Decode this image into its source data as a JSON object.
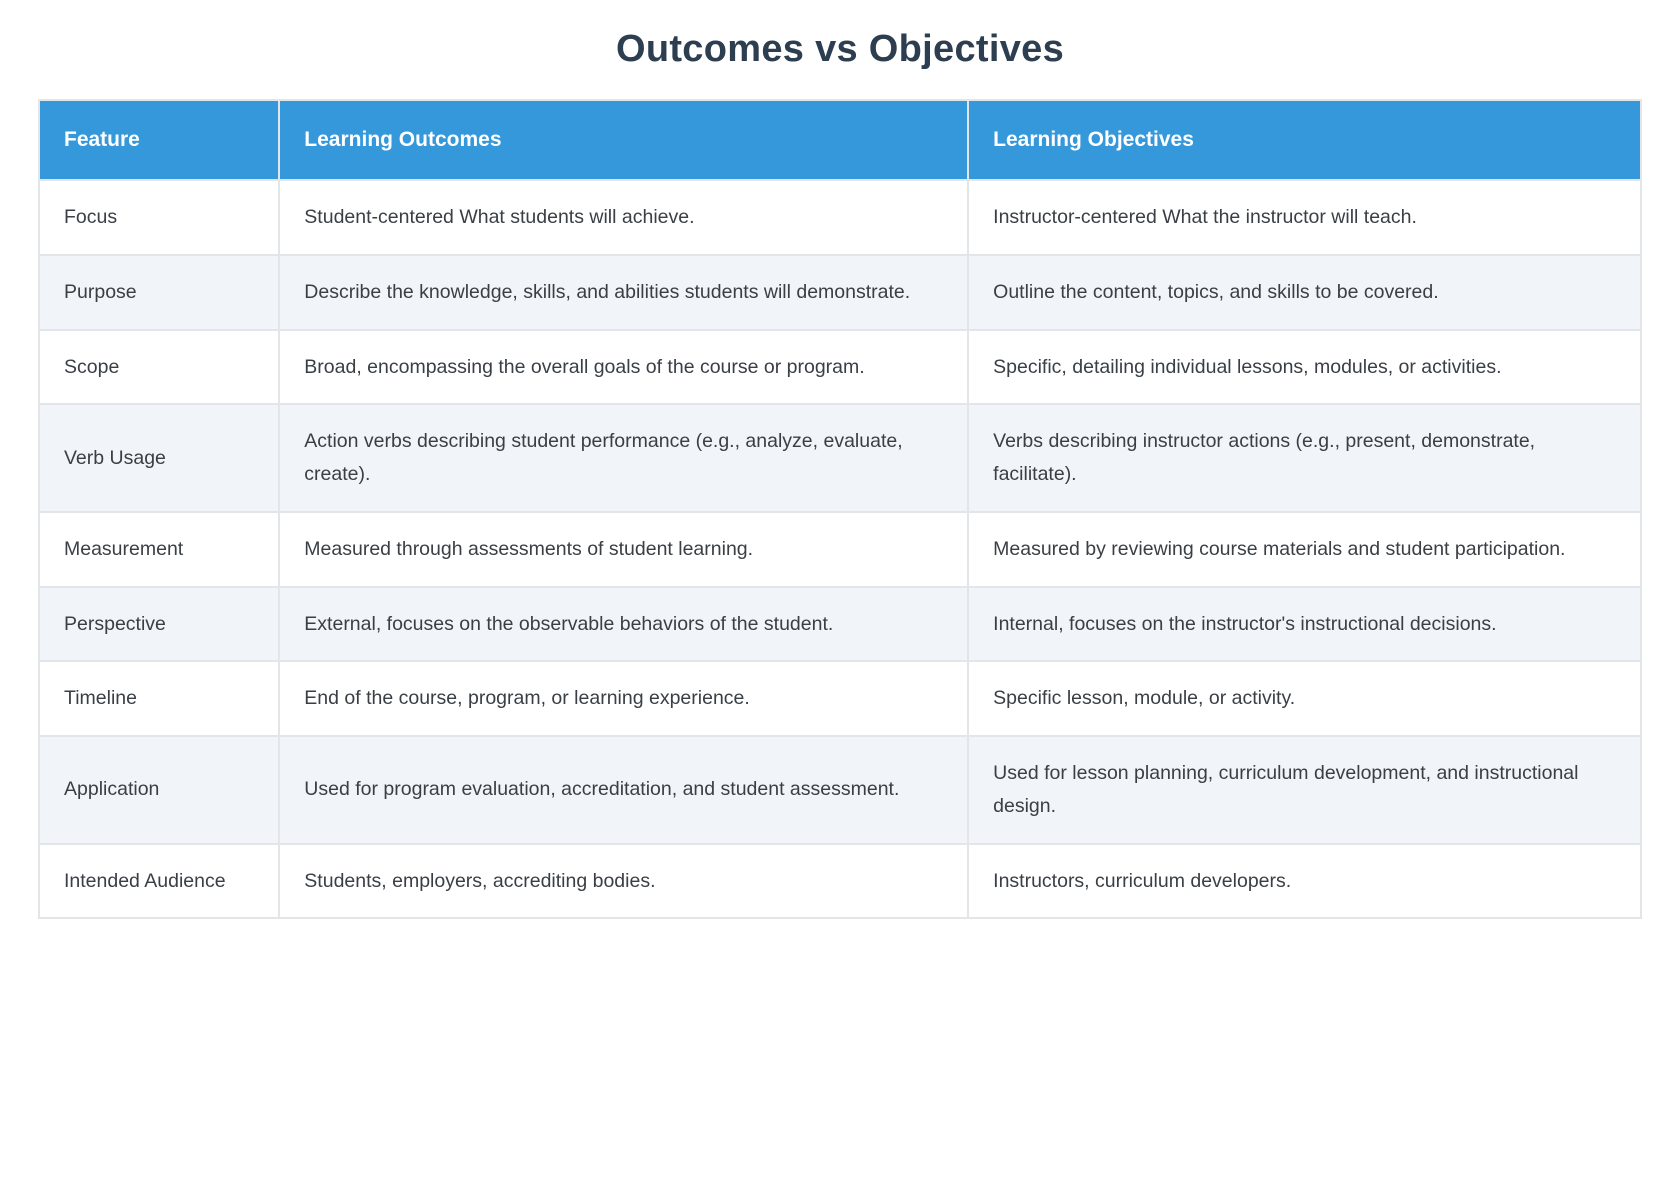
{
  "title": "Outcomes vs Objectives",
  "theme": {
    "header_bg": "#3598db",
    "header_text": "#ffffff",
    "title_color": "#2c3e50",
    "row_bg": "#ffffff",
    "row_alt_bg": "#f1f5f9",
    "border_color": "#e3e6e9",
    "body_text": "#3a3f45"
  },
  "table": {
    "columns": [
      "Feature",
      "Learning Outcomes",
      "Learning Objectives"
    ],
    "rows": [
      {
        "feature": "Focus",
        "outcomes": "Student-centered What students will achieve.",
        "objectives": "Instructor-centered What the instructor will teach."
      },
      {
        "feature": "Purpose",
        "outcomes": "Describe the knowledge, skills, and abilities students will demonstrate.",
        "objectives": "Outline the content, topics, and skills to be covered."
      },
      {
        "feature": "Scope",
        "outcomes": "Broad, encompassing the overall goals of the course or program.",
        "objectives": "Specific, detailing individual lessons, modules, or activities."
      },
      {
        "feature": "Verb Usage",
        "outcomes": "Action verbs describing student performance (e.g., analyze, evaluate, create).",
        "objectives": "Verbs describing instructor actions (e.g., present, demonstrate, facilitate)."
      },
      {
        "feature": "Measurement",
        "outcomes": "Measured through assessments of student learning.",
        "objectives": "Measured by reviewing course materials and student participation."
      },
      {
        "feature": "Perspective",
        "outcomes": "External, focuses on the observable behaviors of the student.",
        "objectives": "Internal, focuses on the instructor's instructional decisions."
      },
      {
        "feature": "Timeline",
        "outcomes": "End of the course, program, or learning experience.",
        "objectives": "Specific lesson, module, or activity."
      },
      {
        "feature": "Application",
        "outcomes": "Used for program evaluation, accreditation, and student assessment.",
        "objectives": "Used for lesson planning, curriculum development, and instructional design."
      },
      {
        "feature": "Intended Audience",
        "outcomes": "Students, employers, accrediting bodies.",
        "objectives": "Instructors, curriculum developers."
      }
    ]
  }
}
